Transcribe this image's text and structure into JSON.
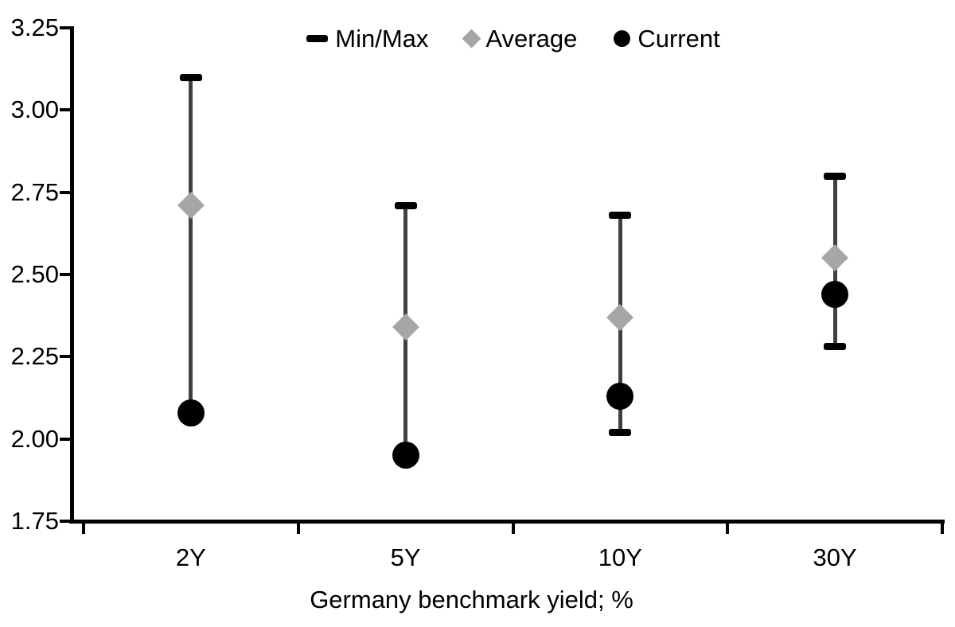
{
  "chart_data": {
    "type": "scatter",
    "subtype": "min-max-range-with-point-markers",
    "categories": [
      "2Y",
      "5Y",
      "10Y",
      "30Y"
    ],
    "series": [
      {
        "name": "Min/Max",
        "marker": "dash",
        "max": [
          3.1,
          2.71,
          2.68,
          2.8
        ],
        "min": [
          2.08,
          1.95,
          2.02,
          2.28
        ]
      },
      {
        "name": "Average",
        "marker": "diamond",
        "values": [
          2.71,
          2.34,
          2.37,
          2.55
        ]
      },
      {
        "name": "Current",
        "marker": "circle",
        "values": [
          2.08,
          1.95,
          2.13,
          2.44
        ]
      }
    ],
    "title": "",
    "xlabel": "Germany benchmark yield; %",
    "ylabel": "",
    "ylim": [
      1.75,
      3.25
    ],
    "y_tick_step": 0.25,
    "y_tick_labels": [
      "3.25",
      "3.00",
      "2.75",
      "2.50",
      "2.25",
      "2.00",
      "1.75"
    ],
    "grid": false,
    "legend_position": "top-center",
    "colors": {
      "axis": "#000000",
      "range_line": "#404040",
      "min_max_cap": "#000000",
      "average": "#a6a6a6",
      "current": "#000000",
      "text": "#000000",
      "background": "#ffffff"
    }
  }
}
